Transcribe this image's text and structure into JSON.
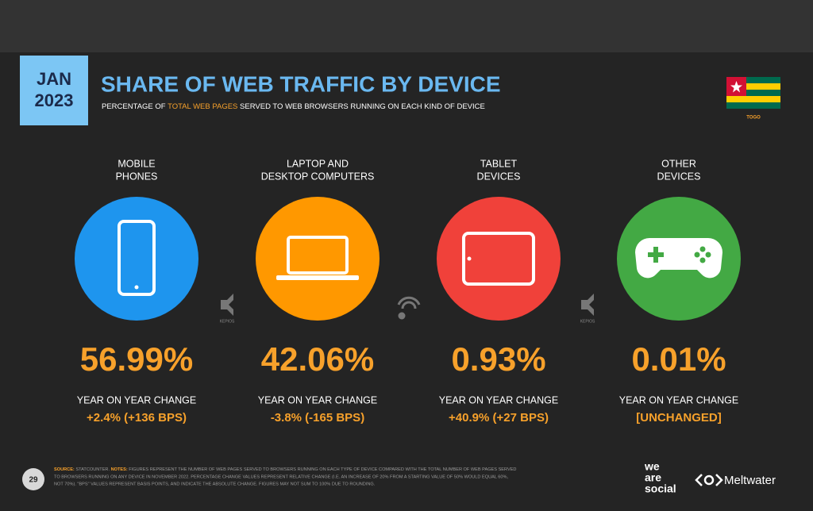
{
  "header": {
    "date_month": "JAN",
    "date_year": "2023",
    "title": "SHARE OF WEB TRAFFIC BY DEVICE",
    "subtitle": [
      "PERCENTAGE OF ",
      "TOTAL WEB PAGES",
      " SERVED TO WEB BROWSERS RUNNING ON EACH KIND OF DEVICE"
    ],
    "flag_label": "TOGO"
  },
  "cards": [
    {
      "label": [
        "MOBILE",
        "PHONES"
      ],
      "value": "56.99%",
      "change_label": "YEAR ON YEAR CHANGE",
      "change": "+2.4% (+136 BPS)"
    },
    {
      "label": [
        "LAPTOP AND",
        "DESKTOP COMPUTERS"
      ],
      "value": "42.06%",
      "change_label": "YEAR ON YEAR CHANGE",
      "change": "-3.8% (-165 BPS)"
    },
    {
      "label": [
        "TABLET",
        "DEVICES"
      ],
      "value": "0.93%",
      "change_label": "YEAR ON YEAR CHANGE",
      "change": "+40.9% (+27 BPS)"
    },
    {
      "label": [
        "OTHER",
        "DEVICES"
      ],
      "value": "0.01%",
      "change_label": "YEAR ON YEAR CHANGE",
      "change": "[UNCHANGED]"
    }
  ],
  "watermark": "KEPIOS",
  "footer": {
    "page": "29",
    "source_label": "SOURCE:",
    "source": " STATCOUNTER. ",
    "notes_label": "NOTES:",
    "notes": [
      " FIGURES REPRESENT THE NUMBER OF WEB PAGES SERVED TO BROWSERS RUNNING ON EACH TYPE OF DEVICE COMPARED WITH THE TOTAL NUMBER OF WEB PAGES SERVED",
      "TO BROWSERS RUNNING ON ANY DEVICE IN NOVEMBER 2022. PERCENTAGE CHANGE VALUES REPRESENT RELATIVE CHANGE (I.E. AN INCREASE OF 20% FROM A STARTING VALUE OF 50% WOULD EQUAL 60%,",
      "NOT 70%). \"BPS\" VALUES REPRESENT BASIS POINTS, AND INDICATE THE ABSOLUTE CHANGE. FIGURES MAY NOT SUM TO 100% DUE TO ROUNDING."
    ],
    "logo_1": [
      "we",
      "are",
      "social"
    ],
    "logo_2": "Meltwater"
  }
}
